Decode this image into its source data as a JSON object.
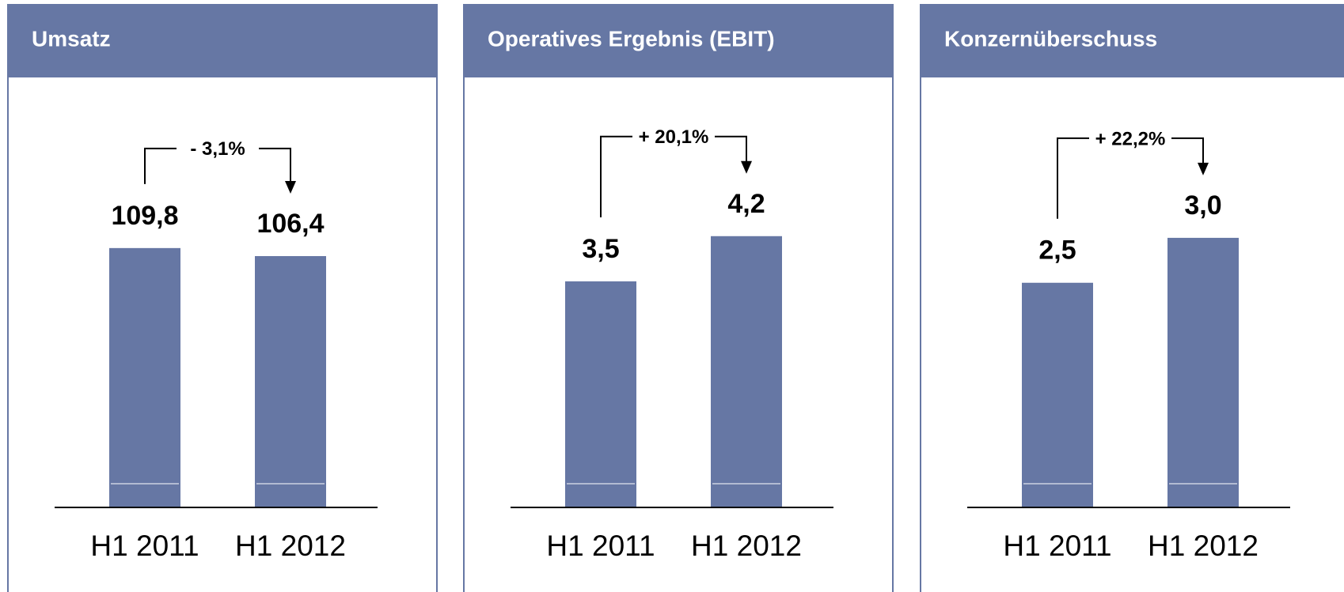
{
  "chart_data": [
    {
      "type": "bar",
      "title": "Umsatz",
      "categories": [
        "H1 2011",
        "H1 2012"
      ],
      "values": [
        109.8,
        106.4
      ],
      "value_labels": [
        "109,8",
        "106,4"
      ],
      "annotation": "- 3,1%",
      "color": "#6677a4",
      "ylim": [
        0,
        175
      ]
    },
    {
      "type": "bar",
      "title": "Operatives Ergebnis (EBIT)",
      "categories": [
        "H1 2011",
        "H1 2012"
      ],
      "values": [
        3.5,
        4.2
      ],
      "value_labels": [
        "3,5",
        "4,2"
      ],
      "annotation": "+ 20,1%",
      "color": "#6677a4",
      "ylim": [
        0,
        6.4
      ]
    },
    {
      "type": "bar",
      "title": "Konzernüberschuss",
      "categories": [
        "H1 2011",
        "H1 2012"
      ],
      "values": [
        2.5,
        3.0
      ],
      "value_labels": [
        "2,5",
        "3,0"
      ],
      "annotation": "+ 22,2%",
      "color": "#6677a4",
      "ylim": [
        0,
        4.6
      ]
    }
  ]
}
